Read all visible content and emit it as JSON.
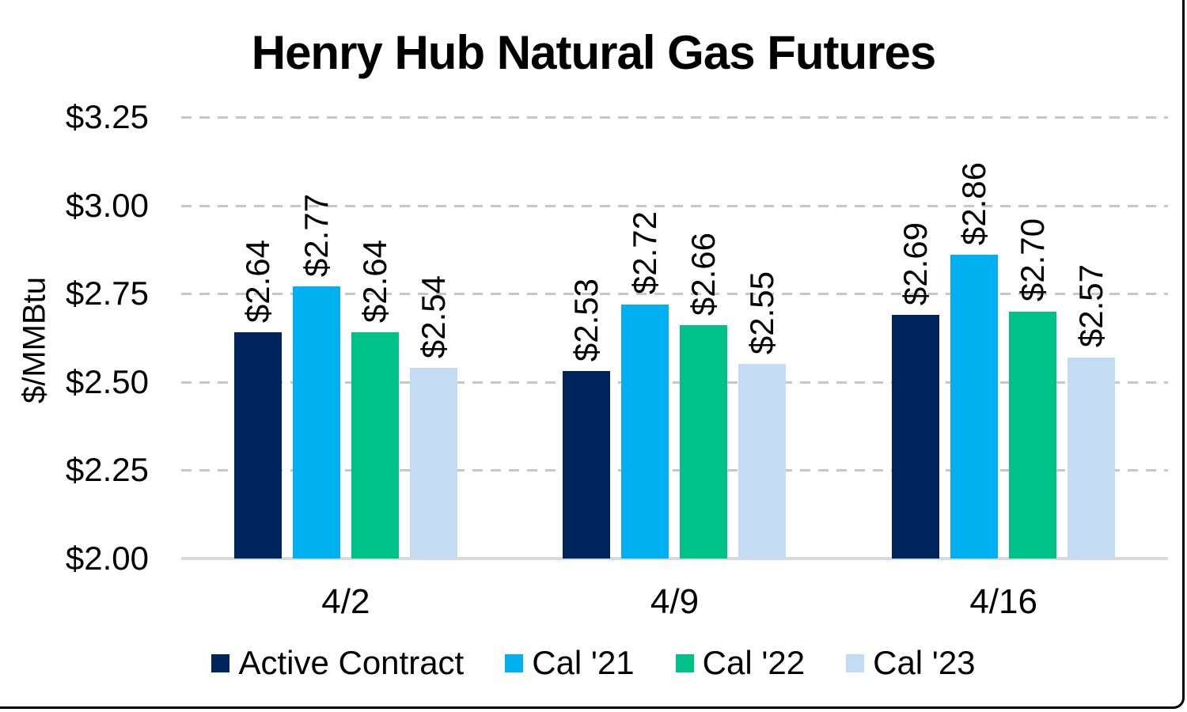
{
  "chart_data": {
    "type": "bar",
    "title": "Henry Hub Natural Gas Futures",
    "ylabel": "$/MMBtu",
    "xlabel": "",
    "categories": [
      "4/2",
      "4/9",
      "4/16"
    ],
    "series": [
      {
        "name": "Active Contract",
        "color": "#00245D",
        "values": [
          2.64,
          2.53,
          2.69
        ]
      },
      {
        "name": "Cal '21",
        "color": "#00B0F0",
        "values": [
          2.77,
          2.72,
          2.86
        ]
      },
      {
        "name": "Cal '22",
        "color": "#00C189",
        "values": [
          2.64,
          2.66,
          2.7
        ]
      },
      {
        "name": "Cal '23",
        "color": "#C3DBF3",
        "values": [
          2.54,
          2.55,
          2.57
        ]
      }
    ],
    "data_labels": [
      [
        "$2.64",
        "$2.77",
        "$2.64",
        "$2.54"
      ],
      [
        "$2.53",
        "$2.72",
        "$2.66",
        "$2.55"
      ],
      [
        "$2.69",
        "$2.86",
        "$2.70",
        "$2.57"
      ]
    ],
    "y_axis": {
      "min": 2.0,
      "max": 3.25,
      "step": 0.25,
      "tick_labels": [
        "$2.00",
        "$2.25",
        "$2.50",
        "$2.75",
        "$3.00",
        "$3.25"
      ]
    },
    "grid": "horizontal-dashed",
    "legend_position": "bottom",
    "colors": {
      "gridline": "#c7c7c7",
      "axis_baseline": "#d9d9d9",
      "text": "#000000",
      "background": "#ffffff"
    }
  }
}
